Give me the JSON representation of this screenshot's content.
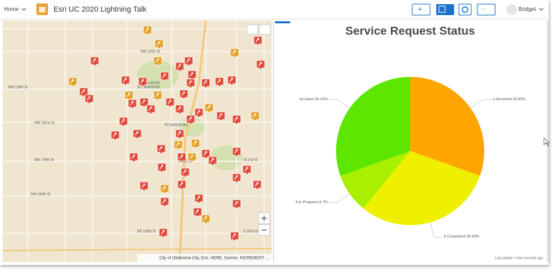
{
  "header": {
    "home": "Home",
    "title": "Esri UC 2020 Lightning Talk",
    "user": "Bridget"
  },
  "map": {
    "labels": [
      "NW 234th St",
      "NW 192nd St",
      "NW 178th St",
      "NW 164th St",
      "W Danforth Rd",
      "W Edmond Rd",
      "W Covell Rd",
      "W 2nd St",
      "W 3rd St",
      "NE 150th St",
      "E 33rd St",
      "NW 220th St"
    ],
    "attribution": "City of Oklahoma City, Esri, HERE, Garmin, INCREMENT ..."
  },
  "chart_data": {
    "type": "pie",
    "title": "Service Request Status",
    "categories": [
      "1-Received",
      "6-Completed",
      "3-In Progress",
      "2a-Open"
    ],
    "values": [
      30.43,
      30.43,
      8.7,
      30.43
    ],
    "value_labels": [
      "30.43%",
      "30.43%",
      "8.7%",
      "30.43%"
    ],
    "colors": [
      "#ffa500",
      "#eef000",
      "#a8f000",
      "#5ce600"
    ]
  },
  "footer": {
    "last_update": "Last update: a few seconds ago"
  }
}
